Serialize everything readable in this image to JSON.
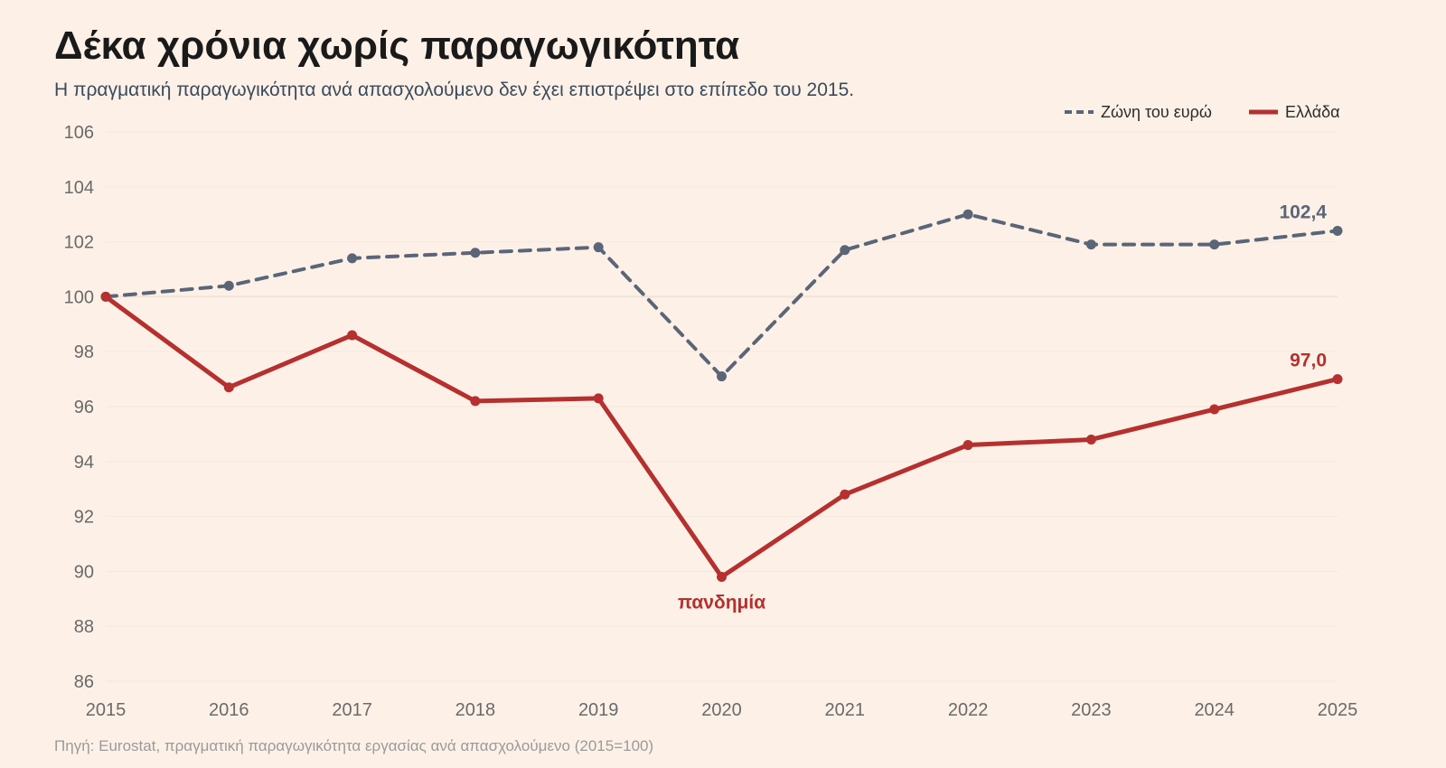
{
  "title": "Δέκα χρόνια χωρίς παραγωγικότητα",
  "subtitle": "Η πραγματική παραγωγικότητα ανά απασχολούμενο δεν έχει επιστρέψει στο επίπεδο του 2015.",
  "source": "Πηγή: Eurostat, πραγματική παραγωγικότητα εργασίας ανά απασχολούμενο (2015=100)",
  "chart_data": {
    "type": "line",
    "x": [
      "2015",
      "2016",
      "2017",
      "2018",
      "2019",
      "2020",
      "2021",
      "2022",
      "2023",
      "2024",
      "2025"
    ],
    "ylim": [
      86,
      106
    ],
    "yticks": [
      86,
      88,
      90,
      92,
      94,
      96,
      98,
      100,
      102,
      104,
      106
    ],
    "grid": "horizontal",
    "legend_position": "top-right",
    "series": [
      {
        "name": "Ζώνη του ευρώ",
        "color": "#5b6578",
        "style": "dashed",
        "values": [
          100.0,
          100.4,
          101.4,
          101.6,
          101.8,
          97.1,
          101.7,
          103.0,
          101.9,
          101.9,
          102.4
        ],
        "end_label": "102,4"
      },
      {
        "name": "Ελλάδα",
        "color": "#b5302f",
        "style": "solid",
        "values": [
          100.0,
          96.7,
          98.6,
          96.2,
          96.3,
          89.8,
          92.8,
          94.6,
          94.8,
          95.9,
          97.0
        ],
        "end_label": "97,0"
      }
    ],
    "annotations": [
      {
        "text": "πανδημία",
        "x": "2020",
        "series": "Ελλάδα",
        "color": "#b5302f"
      }
    ]
  }
}
